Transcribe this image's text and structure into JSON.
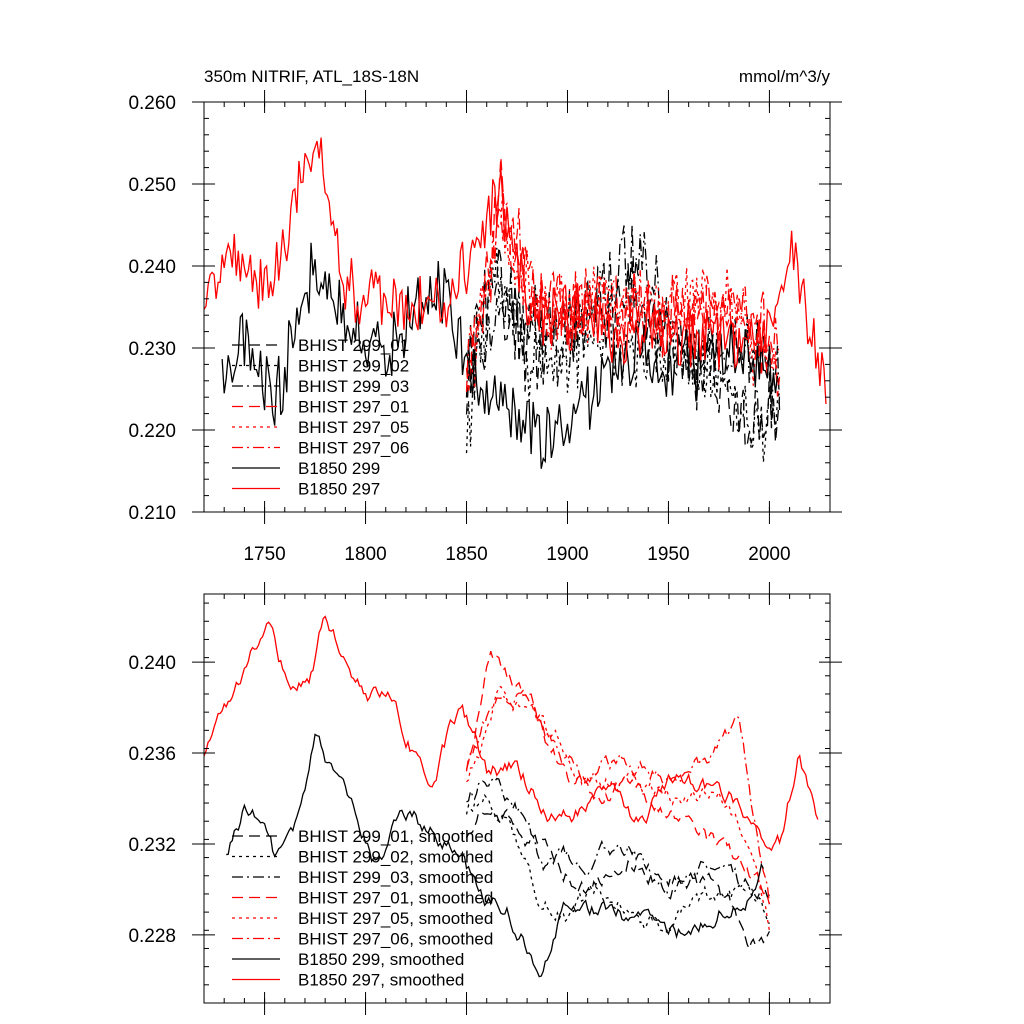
{
  "chart_data": [
    {
      "type": "line",
      "title": "350m NITRIF, ATL_18S-18N",
      "units_label": "mmol/m^3/y",
      "xlim": [
        1720,
        2030
      ],
      "ylim": [
        0.21,
        0.26
      ],
      "x_ticks": [
        1750,
        1800,
        1850,
        1900,
        1950,
        2000
      ],
      "x_tick_labels": [
        "1750",
        "1800",
        "1850",
        "1900",
        "1950",
        "2000"
      ],
      "y_ticks": [
        0.21,
        0.22,
        0.23,
        0.24,
        0.25,
        0.26
      ],
      "y_tick_labels": [
        "0.210",
        "0.220",
        "0.230",
        "0.240",
        "0.250",
        "0.260"
      ],
      "legend_position": "lower-left",
      "series": [
        {
          "name": "BHIST 299_01",
          "color": "#000000",
          "dash": "dash",
          "kind": "hist",
          "x0": 1850,
          "x1": 2005,
          "base": 0.23,
          "amp": 0.0065,
          "seed": 11,
          "key": [
            [
              1850,
              0.226
            ],
            [
              1862,
              0.238
            ],
            [
              1880,
              0.229
            ],
            [
              1900,
              0.233
            ],
            [
              1930,
              0.236
            ],
            [
              1960,
              0.229
            ],
            [
              1990,
              0.222
            ],
            [
              2005,
              0.222
            ]
          ]
        },
        {
          "name": "BHIST 299_02",
          "color": "#000000",
          "dash": "dot",
          "kind": "hist",
          "x0": 1850,
          "x1": 2005,
          "base": 0.23,
          "amp": 0.0065,
          "seed": 12,
          "key": [
            [
              1850,
              0.218
            ],
            [
              1865,
              0.24
            ],
            [
              1880,
              0.228
            ],
            [
              1910,
              0.231
            ],
            [
              1940,
              0.23
            ],
            [
              1970,
              0.229
            ],
            [
              1995,
              0.218
            ],
            [
              2005,
              0.222
            ]
          ]
        },
        {
          "name": "BHIST 299_03",
          "color": "#000000",
          "dash": "dashdot",
          "kind": "hist",
          "x0": 1850,
          "x1": 2005,
          "base": 0.23,
          "amp": 0.0065,
          "seed": 13,
          "key": [
            [
              1850,
              0.228
            ],
            [
              1870,
              0.235
            ],
            [
              1900,
              0.23
            ],
            [
              1930,
              0.242
            ],
            [
              1960,
              0.229
            ],
            [
              1990,
              0.23
            ],
            [
              2005,
              0.225
            ]
          ]
        },
        {
          "name": "BHIST 297_01",
          "color": "#ff0000",
          "dash": "dash",
          "kind": "hist",
          "x0": 1850,
          "x1": 2005,
          "base": 0.233,
          "amp": 0.006,
          "seed": 21,
          "key": [
            [
              1850,
              0.225
            ],
            [
              1867,
              0.248
            ],
            [
              1880,
              0.236
            ],
            [
              1910,
              0.235
            ],
            [
              1940,
              0.234
            ],
            [
              1970,
              0.234
            ],
            [
              1990,
              0.233
            ],
            [
              2005,
              0.228
            ]
          ]
        },
        {
          "name": "BHIST 297_05",
          "color": "#ff0000",
          "dash": "dot",
          "kind": "hist",
          "x0": 1850,
          "x1": 2005,
          "base": 0.233,
          "amp": 0.006,
          "seed": 22,
          "key": [
            [
              1850,
              0.222
            ],
            [
              1866,
              0.245
            ],
            [
              1890,
              0.234
            ],
            [
              1920,
              0.235
            ],
            [
              1950,
              0.236
            ],
            [
              1980,
              0.235
            ],
            [
              2005,
              0.227
            ]
          ]
        },
        {
          "name": "BHIST 297_06",
          "color": "#ff0000",
          "dash": "dashdot",
          "kind": "hist",
          "x0": 1850,
          "x1": 2005,
          "base": 0.233,
          "amp": 0.006,
          "seed": 23,
          "key": [
            [
              1850,
              0.228
            ],
            [
              1868,
              0.246
            ],
            [
              1890,
              0.233
            ],
            [
              1920,
              0.236
            ],
            [
              1950,
              0.233
            ],
            [
              1980,
              0.236
            ],
            [
              2005,
              0.229
            ]
          ]
        },
        {
          "name": "B1850 299",
          "color": "#000000",
          "dash": "solid",
          "kind": "ctrl",
          "x0": 1729,
          "x1": 2004,
          "base": 0.23,
          "amp": 0.0055,
          "seed": 31,
          "key": [
            [
              1729,
              0.226
            ],
            [
              1740,
              0.231
            ],
            [
              1755,
              0.223
            ],
            [
              1775,
              0.24
            ],
            [
              1790,
              0.232
            ],
            [
              1810,
              0.23
            ],
            [
              1840,
              0.238
            ],
            [
              1850,
              0.227
            ],
            [
              1890,
              0.218
            ],
            [
              1920,
              0.228
            ],
            [
              1950,
              0.228
            ],
            [
              1980,
              0.229
            ],
            [
              2004,
              0.227
            ]
          ]
        },
        {
          "name": "B1850 297",
          "color": "#ff0000",
          "dash": "solid",
          "kind": "ctrl",
          "x0": 1720,
          "x1": 2028,
          "base": 0.2355,
          "amp": 0.005,
          "seed": 41,
          "key": [
            [
              1720,
              0.237
            ],
            [
              1735,
              0.243
            ],
            [
              1750,
              0.236
            ],
            [
              1775,
              0.255
            ],
            [
              1790,
              0.237
            ],
            [
              1810,
              0.236
            ],
            [
              1840,
              0.234
            ],
            [
              1866,
              0.25
            ],
            [
              1880,
              0.234
            ],
            [
              1950,
              0.232
            ],
            [
              2000,
              0.231
            ],
            [
              2010,
              0.244
            ],
            [
              2020,
              0.233
            ],
            [
              2028,
              0.224
            ]
          ]
        }
      ]
    },
    {
      "type": "line",
      "title": "",
      "xlim": [
        1720,
        2030
      ],
      "ylim": [
        0.225,
        0.243
      ],
      "x_ticks": [
        1750,
        1800,
        1850,
        1900,
        1950,
        2000
      ],
      "x_tick_labels": [],
      "y_ticks": [
        0.228,
        0.232,
        0.236,
        0.24
      ],
      "y_tick_labels": [
        "0.228",
        "0.232",
        "0.236",
        "0.240"
      ],
      "legend_position": "lower-left",
      "series": [
        {
          "name": "BHIST 299_01, smoothed",
          "color": "#000000",
          "dash": "dash",
          "kind": "smooth",
          "x0": 1850,
          "x1": 2000,
          "amp": 0.0006,
          "seed": 51,
          "key": [
            [
              1850,
              0.2325
            ],
            [
              1860,
              0.234
            ],
            [
              1870,
              0.2335
            ],
            [
              1880,
              0.2325
            ],
            [
              1895,
              0.231
            ],
            [
              1910,
              0.23
            ],
            [
              1930,
              0.2315
            ],
            [
              1950,
              0.2305
            ],
            [
              1970,
              0.23
            ],
            [
              1985,
              0.2285
            ],
            [
              1995,
              0.2275
            ],
            [
              2000,
              0.228
            ]
          ]
        },
        {
          "name": "BHIST 299_02, smoothed",
          "color": "#000000",
          "dash": "dot",
          "kind": "smooth",
          "x0": 1850,
          "x1": 2000,
          "amp": 0.0006,
          "seed": 52,
          "key": [
            [
              1850,
              0.2335
            ],
            [
              1860,
              0.2345
            ],
            [
              1870,
              0.233
            ],
            [
              1885,
              0.23
            ],
            [
              1900,
              0.229
            ],
            [
              1920,
              0.23
            ],
            [
              1940,
              0.2285
            ],
            [
              1960,
              0.229
            ],
            [
              1980,
              0.23
            ],
            [
              1995,
              0.2295
            ],
            [
              2000,
              0.2285
            ]
          ]
        },
        {
          "name": "BHIST 299_03, smoothed",
          "color": "#000000",
          "dash": "dashdot",
          "kind": "smooth",
          "x0": 1850,
          "x1": 2000,
          "amp": 0.0006,
          "seed": 53,
          "key": [
            [
              1850,
              0.234
            ],
            [
              1860,
              0.235
            ],
            [
              1875,
              0.2335
            ],
            [
              1890,
              0.231
            ],
            [
              1910,
              0.2315
            ],
            [
              1930,
              0.232
            ],
            [
              1950,
              0.23
            ],
            [
              1970,
              0.231
            ],
            [
              1990,
              0.23
            ],
            [
              2000,
              0.23
            ]
          ]
        },
        {
          "name": "BHIST 297_01, smoothed",
          "color": "#ff0000",
          "dash": "dash",
          "kind": "smooth",
          "x0": 1850,
          "x1": 2000,
          "amp": 0.0006,
          "seed": 61,
          "key": [
            [
              1850,
              0.235
            ],
            [
              1862,
              0.2405
            ],
            [
              1875,
              0.239
            ],
            [
              1885,
              0.2375
            ],
            [
              1900,
              0.235
            ],
            [
              1915,
              0.234
            ],
            [
              1930,
              0.2345
            ],
            [
              1950,
              0.233
            ],
            [
              1970,
              0.232
            ],
            [
              1985,
              0.231
            ],
            [
              2000,
              0.2295
            ]
          ]
        },
        {
          "name": "BHIST 297_05, smoothed",
          "color": "#ff0000",
          "dash": "dot",
          "kind": "smooth",
          "x0": 1850,
          "x1": 2000,
          "amp": 0.0006,
          "seed": 62,
          "key": [
            [
              1850,
              0.2345
            ],
            [
              1865,
              0.2385
            ],
            [
              1880,
              0.238
            ],
            [
              1895,
              0.2365
            ],
            [
              1910,
              0.2345
            ],
            [
              1930,
              0.235
            ],
            [
              1950,
              0.234
            ],
            [
              1970,
              0.2345
            ],
            [
              1985,
              0.233
            ],
            [
              2000,
              0.2285
            ]
          ]
        },
        {
          "name": "BHIST 297_06, smoothed",
          "color": "#ff0000",
          "dash": "dashdot",
          "kind": "smooth",
          "x0": 1850,
          "x1": 2000,
          "amp": 0.0006,
          "seed": 63,
          "key": [
            [
              1850,
              0.235
            ],
            [
              1865,
              0.239
            ],
            [
              1880,
              0.2385
            ],
            [
              1895,
              0.236
            ],
            [
              1910,
              0.235
            ],
            [
              1930,
              0.2355
            ],
            [
              1950,
              0.235
            ],
            [
              1970,
              0.2355
            ],
            [
              1985,
              0.237
            ],
            [
              1990,
              0.2345
            ],
            [
              2000,
              0.2295
            ]
          ]
        },
        {
          "name": "B1850 299, smoothed",
          "color": "#000000",
          "dash": "solid",
          "kind": "smooth",
          "x0": 1731,
          "x1": 1997,
          "amp": 0.0006,
          "seed": 71,
          "key": [
            [
              1731,
              0.2315
            ],
            [
              1740,
              0.2335
            ],
            [
              1748,
              0.2335
            ],
            [
              1755,
              0.2315
            ],
            [
              1765,
              0.233
            ],
            [
              1775,
              0.2365
            ],
            [
              1785,
              0.2345
            ],
            [
              1795,
              0.233
            ],
            [
              1805,
              0.231
            ],
            [
              1815,
              0.233
            ],
            [
              1825,
              0.233
            ],
            [
              1840,
              0.232
            ],
            [
              1855,
              0.23
            ],
            [
              1870,
              0.229
            ],
            [
              1888,
              0.2265
            ],
            [
              1900,
              0.2295
            ],
            [
              1920,
              0.229
            ],
            [
              1940,
              0.2285
            ],
            [
              1960,
              0.228
            ],
            [
              1975,
              0.229
            ],
            [
              1990,
              0.23
            ],
            [
              1997,
              0.231
            ]
          ]
        },
        {
          "name": "B1850 297, smoothed",
          "color": "#ff0000",
          "dash": "solid",
          "kind": "smooth",
          "x0": 1720,
          "x1": 2024,
          "amp": 0.0006,
          "seed": 81,
          "key": [
            [
              1720,
              0.236
            ],
            [
              1730,
              0.238
            ],
            [
              1740,
              0.2395
            ],
            [
              1752,
              0.242
            ],
            [
              1762,
              0.239
            ],
            [
              1772,
              0.239
            ],
            [
              1780,
              0.242
            ],
            [
              1790,
              0.24
            ],
            [
              1800,
              0.2385
            ],
            [
              1812,
              0.2385
            ],
            [
              1825,
              0.236
            ],
            [
              1835,
              0.235
            ],
            [
              1848,
              0.2385
            ],
            [
              1860,
              0.235
            ],
            [
              1875,
              0.2355
            ],
            [
              1890,
              0.2335
            ],
            [
              1905,
              0.2335
            ],
            [
              1920,
              0.234
            ],
            [
              1935,
              0.233
            ],
            [
              1950,
              0.2345
            ],
            [
              1965,
              0.2345
            ],
            [
              1980,
              0.234
            ],
            [
              1995,
              0.232
            ],
            [
              2005,
              0.232
            ],
            [
              2015,
              0.236
            ],
            [
              2024,
              0.233
            ]
          ]
        }
      ]
    }
  ]
}
